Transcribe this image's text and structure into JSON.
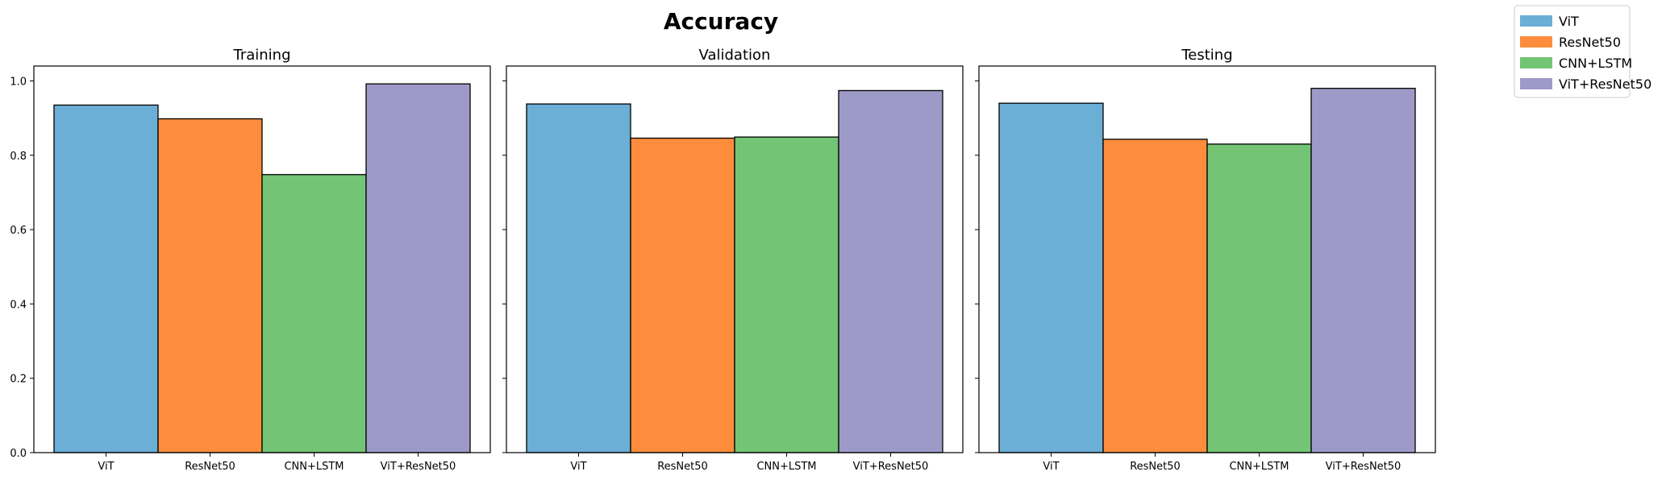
{
  "chart_data": {
    "type": "bar",
    "title": "Accuracy",
    "categories": [
      "ViT",
      "ResNet50",
      "CNN+LSTM",
      "ViT+ResNet50"
    ],
    "ylim": [
      0,
      1.04
    ],
    "yticks": [
      "0.0",
      "0.2",
      "0.4",
      "0.6",
      "0.8",
      "1.0"
    ],
    "legend_position": "top-right",
    "legend": [
      {
        "label": "ViT",
        "color": "#6baed6"
      },
      {
        "label": "ResNet50",
        "color": "#fd8d3c"
      },
      {
        "label": "CNN+LSTM",
        "color": "#74c476"
      },
      {
        "label": "ViT+ResNet50",
        "color": "#9e9ac8"
      }
    ],
    "panels": [
      {
        "title": "Training",
        "values": [
          0.935,
          0.898,
          0.748,
          0.992
        ]
      },
      {
        "title": "Validation",
        "values": [
          0.938,
          0.846,
          0.849,
          0.974
        ]
      },
      {
        "title": "Testing",
        "values": [
          0.94,
          0.843,
          0.83,
          0.98
        ]
      }
    ]
  }
}
